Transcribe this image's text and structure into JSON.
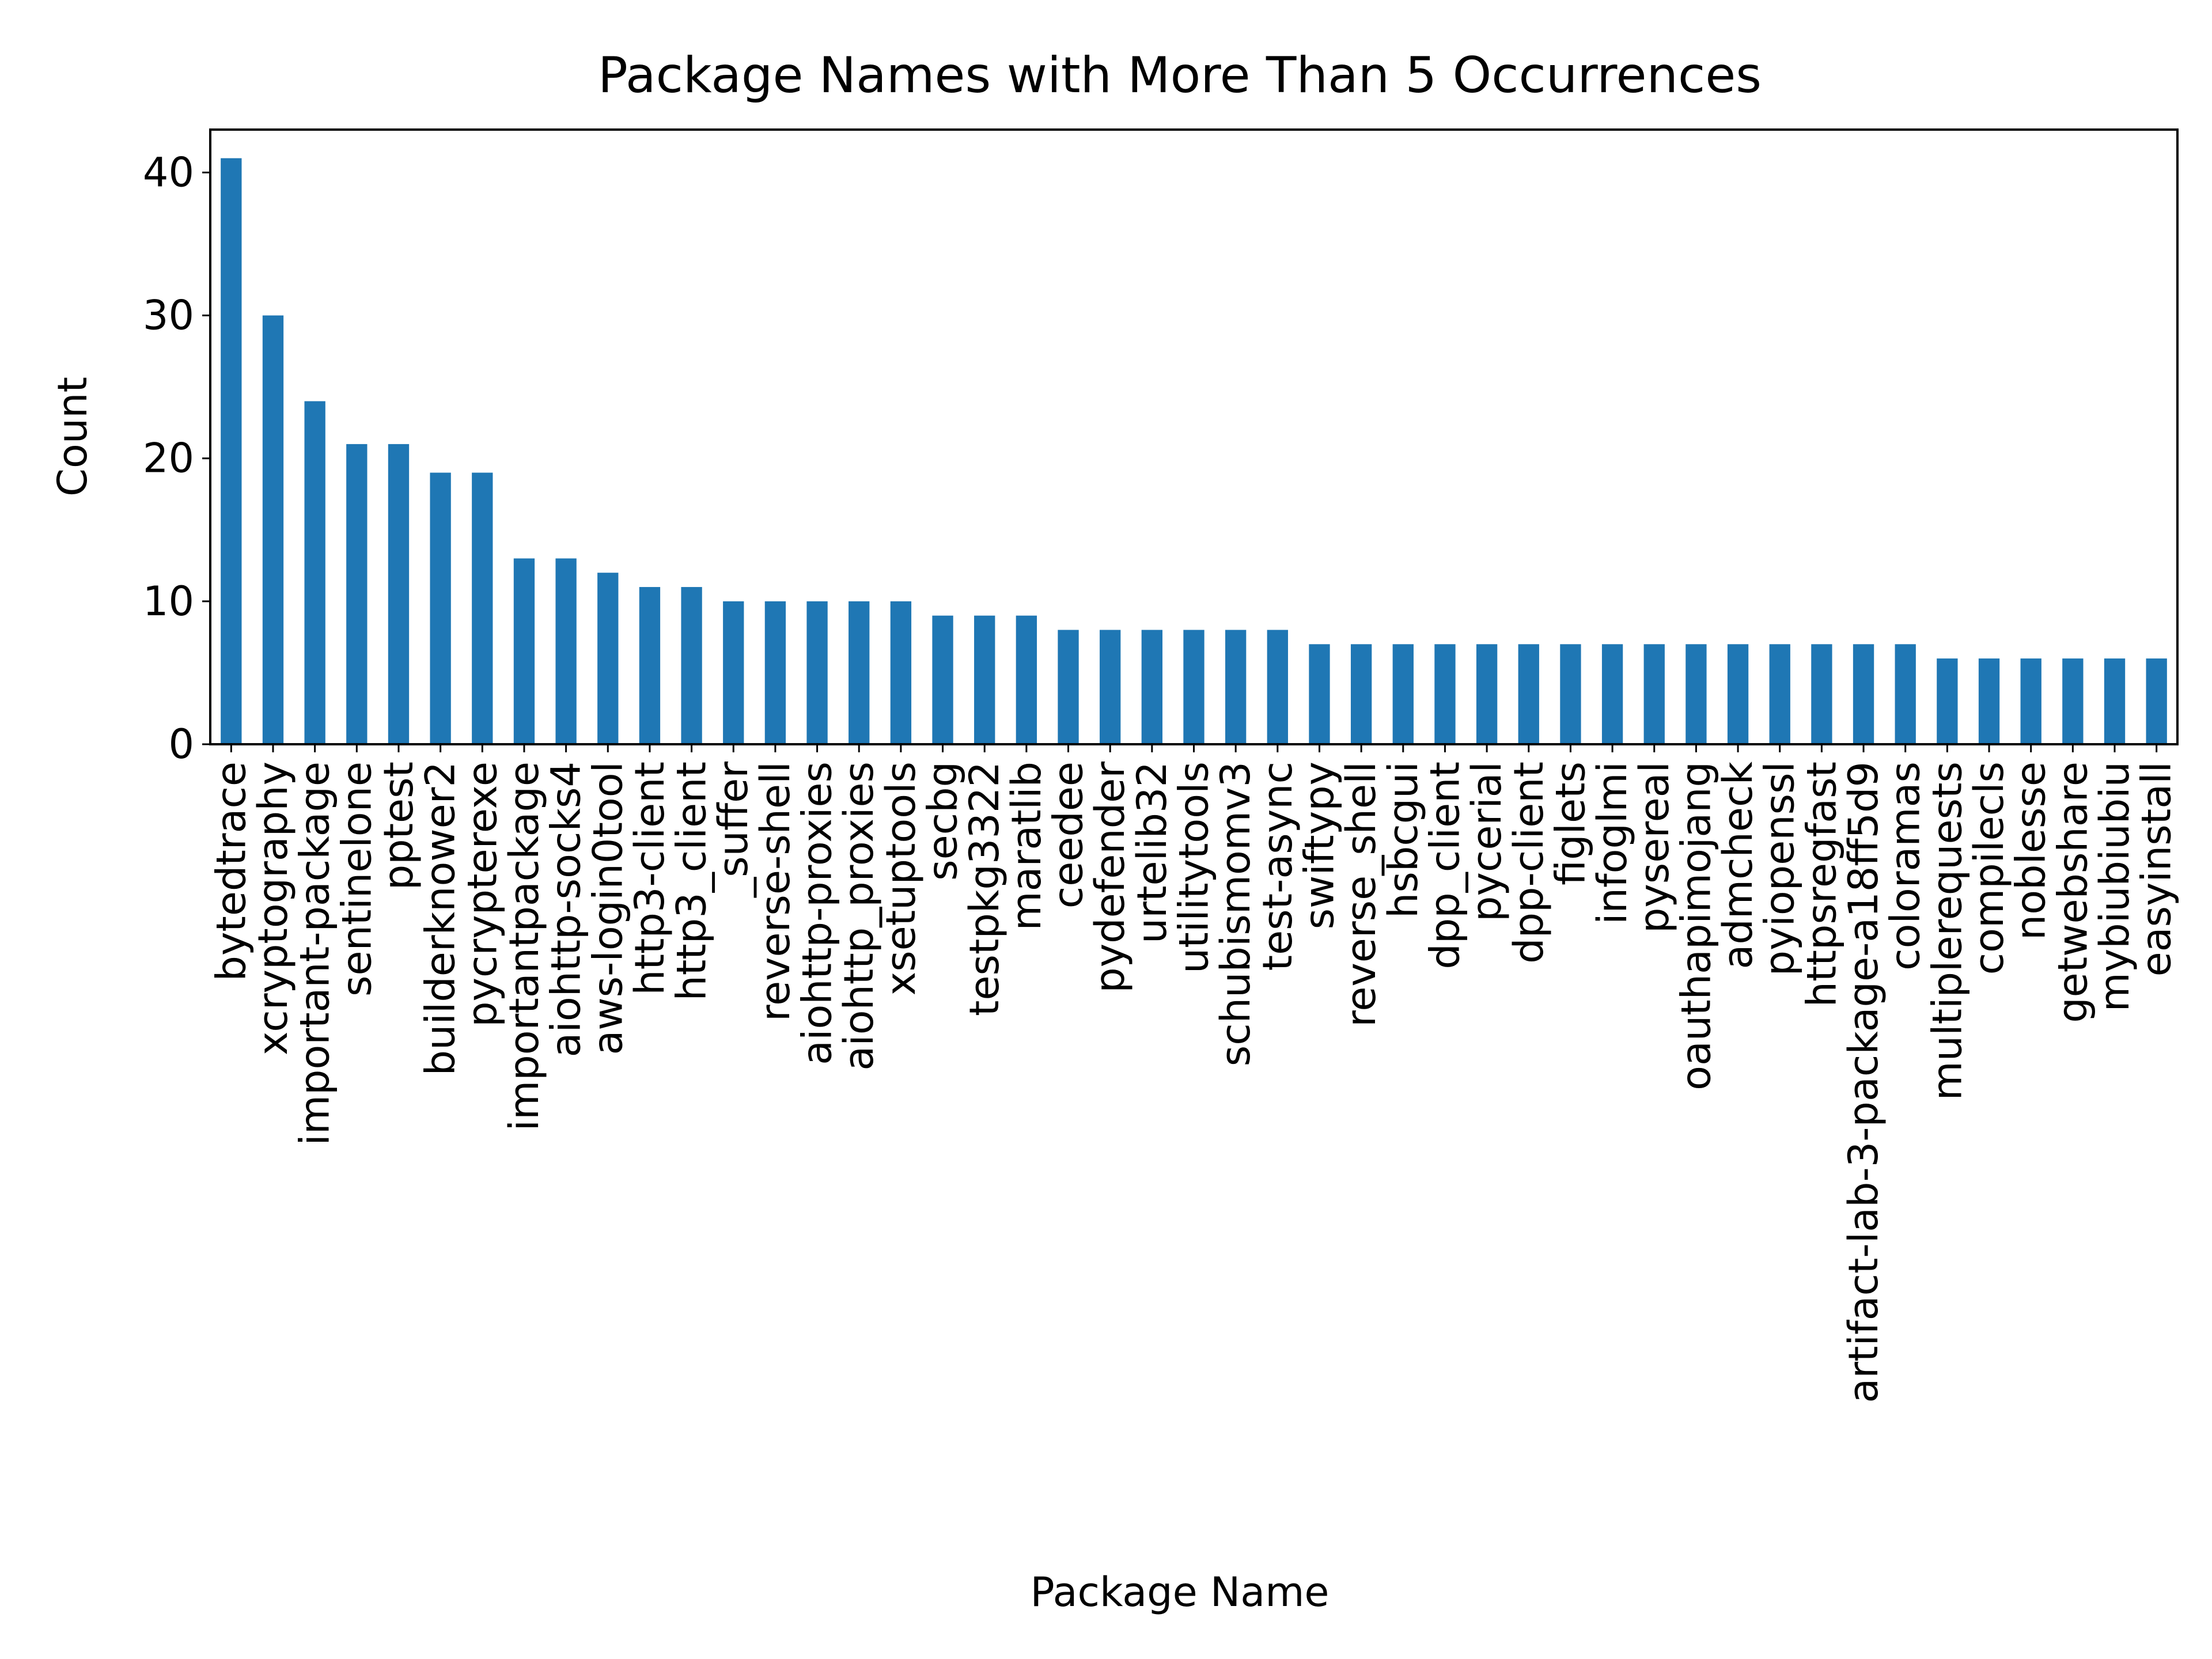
{
  "chart_data": {
    "type": "bar",
    "title": "Package Names with More Than 5 Occurrences",
    "xlabel": "Package Name",
    "ylabel": "Count",
    "ylim": [
      0,
      43
    ],
    "yticks": [
      0,
      10,
      20,
      30,
      40
    ],
    "grid": false,
    "bar_color": "#1f77b4",
    "categories": [
      "bytedtrace",
      "xcryptography",
      "important-package",
      "sentinelone",
      "pptest",
      "builderknower2",
      "pycrypterexe",
      "importantpackage",
      "aiohttp-socks4",
      "aws-login0tool",
      "http3-client",
      "http3_client",
      "_suffer",
      "reverse-shell",
      "aiohttp-proxies",
      "aiohttp_proxies",
      "xsetuptools",
      "secbg",
      "testpkg3322",
      "maratlib",
      "ceedee",
      "pydefender",
      "urtelib32",
      "utilitytools",
      "schubismomv3",
      "test-async",
      "swiftypy",
      "reverse_shell",
      "hsbcgui",
      "dpp_client",
      "pycerial",
      "dpp-client",
      "figlets",
      "infoglmi",
      "pysereal",
      "oauthapimojang",
      "admcheck",
      "pyiopenssl",
      "httpsregfast",
      "artifact-lab-3-package-a18ff5d9",
      "coloramas",
      "multiplerequests",
      "compilecls",
      "noblesse",
      "getwebshare",
      "mybiubiubiu",
      "easyinstall"
    ],
    "values": [
      41,
      30,
      24,
      21,
      21,
      19,
      19,
      13,
      13,
      12,
      11,
      11,
      10,
      10,
      10,
      10,
      10,
      9,
      9,
      9,
      8,
      8,
      8,
      8,
      8,
      8,
      7,
      7,
      7,
      7,
      7,
      7,
      7,
      7,
      7,
      7,
      7,
      7,
      7,
      7,
      7,
      6,
      6,
      6,
      6,
      6,
      6
    ]
  }
}
